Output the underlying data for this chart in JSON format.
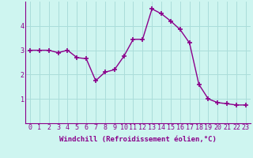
{
  "x": [
    0,
    1,
    2,
    3,
    4,
    5,
    6,
    7,
    8,
    9,
    10,
    11,
    12,
    13,
    14,
    15,
    16,
    17,
    18,
    19,
    20,
    21,
    22,
    23
  ],
  "y": [
    3.0,
    3.0,
    3.0,
    2.9,
    3.0,
    2.7,
    2.65,
    1.75,
    2.1,
    2.2,
    2.75,
    3.45,
    3.45,
    4.7,
    4.5,
    4.2,
    3.85,
    3.3,
    1.6,
    1.0,
    0.85,
    0.8,
    0.75,
    0.75
  ],
  "line_color": "#8B008B",
  "marker": "+",
  "marker_size": 4,
  "bg_color": "#cef5f0",
  "grid_color": "#aaddda",
  "xlabel": "Windchill (Refroidissement éolien,°C)",
  "ylabel": "",
  "title": "",
  "xlim": [
    -0.5,
    23.5
  ],
  "ylim": [
    0.0,
    5.0
  ],
  "yticks": [
    1,
    2,
    3,
    4
  ],
  "xticks": [
    0,
    1,
    2,
    3,
    4,
    5,
    6,
    7,
    8,
    9,
    10,
    11,
    12,
    13,
    14,
    15,
    16,
    17,
    18,
    19,
    20,
    21,
    22,
    23
  ],
  "label_fontsize": 6.5,
  "tick_fontsize": 6.0,
  "linewidth": 1.0
}
